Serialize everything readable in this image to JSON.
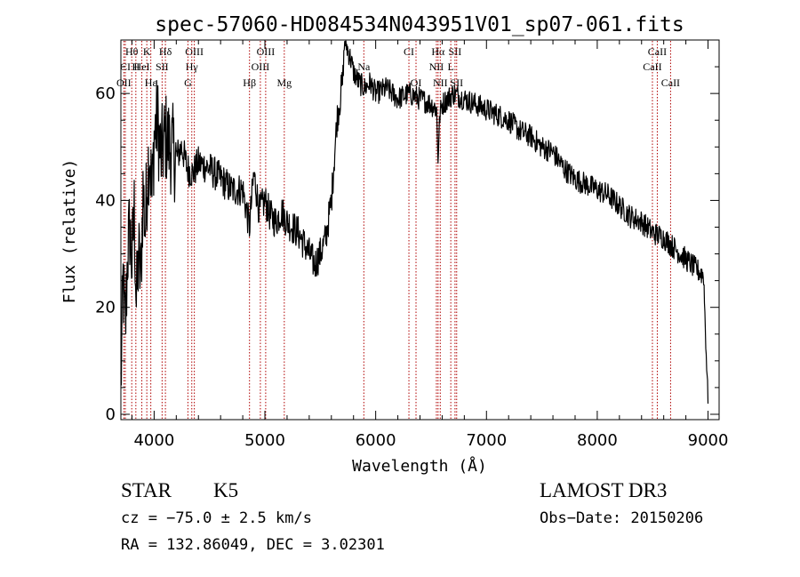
{
  "chart_data": {
    "type": "line",
    "title": "spec-57060-HD084534N043951V01_sp07-061.fits",
    "xlabel": "Wavelength (Å)",
    "ylabel": "Flux (relative)",
    "xlim": [
      3700,
      9100
    ],
    "ylim": [
      -1,
      70
    ],
    "xticks": [
      4000,
      5000,
      6000,
      7000,
      8000,
      9000
    ],
    "yticks": [
      0,
      20,
      40,
      60
    ],
    "series": [
      {
        "name": "flux",
        "x": [
          3700,
          3720,
          3740,
          3760,
          3780,
          3800,
          3820,
          3840,
          3860,
          3880,
          3900,
          3920,
          3940,
          3960,
          3980,
          4000,
          4030,
          4060,
          4100,
          4150,
          4200,
          4250,
          4300,
          4350,
          4400,
          4500,
          4600,
          4700,
          4800,
          4860,
          4900,
          4950,
          5000,
          5050,
          5100,
          5150,
          5200,
          5300,
          5400,
          5450,
          5500,
          5550,
          5600,
          5650,
          5700,
          5720,
          5750,
          5780,
          5800,
          5850,
          5900,
          5950,
          6000,
          6100,
          6200,
          6300,
          6400,
          6500,
          6550,
          6563,
          6580,
          6600,
          6700,
          6800,
          6900,
          7000,
          7100,
          7200,
          7300,
          7400,
          7500,
          7600,
          7700,
          7800,
          7900,
          8000,
          8100,
          8200,
          8300,
          8400,
          8500,
          8600,
          8700,
          8800,
          8900,
          8960,
          9000
        ],
        "y": [
          5,
          25,
          15,
          30,
          35,
          28,
          38,
          20,
          30,
          25,
          42,
          35,
          45,
          50,
          40,
          52,
          55,
          48,
          52,
          50,
          48,
          50,
          46,
          45,
          47,
          46,
          44,
          42,
          42,
          35,
          45,
          38,
          40,
          37,
          36,
          38,
          36,
          34,
          30,
          28,
          30,
          33,
          40,
          55,
          62,
          70,
          68,
          66,
          64,
          62,
          61,
          62,
          60,
          61,
          59,
          60,
          59,
          58,
          57,
          48,
          56,
          58,
          60,
          59,
          58,
          57,
          56,
          55,
          53,
          52,
          50,
          49,
          46,
          44,
          43,
          42,
          41,
          39,
          37,
          36,
          34,
          33,
          31,
          29,
          27,
          26,
          2
        ]
      }
    ],
    "line_markers": [
      {
        "label": "Hθ",
        "x": 3798,
        "row": 1
      },
      {
        "label": "K",
        "x": 3934,
        "row": 1
      },
      {
        "label": "Hδ",
        "x": 4102,
        "row": 1
      },
      {
        "label": "OIII",
        "x": 4363,
        "row": 1
      },
      {
        "label": "OIII",
        "x": 5007,
        "row": 1
      },
      {
        "label": "CI",
        "x": 6300,
        "row": 1
      },
      {
        "label": "Hα",
        "x": 6563,
        "row": 1
      },
      {
        "label": "SII",
        "x": 6716,
        "row": 1
      },
      {
        "label": "CaII",
        "x": 8542,
        "row": 1
      },
      {
        "label": "CI",
        "x": 3740,
        "row": 2
      },
      {
        "label": "H",
        "x": 3835,
        "row": 2
      },
      {
        "label": "HeI",
        "x": 3889,
        "row": 2
      },
      {
        "label": "SII",
        "x": 4072,
        "row": 2
      },
      {
        "label": "Hγ",
        "x": 4340,
        "row": 2
      },
      {
        "label": "OIII",
        "x": 4959,
        "row": 2
      },
      {
        "label": "Na",
        "x": 5893,
        "row": 2
      },
      {
        "label": "NII",
        "x": 6548,
        "row": 2
      },
      {
        "label": "L",
        "x": 6678,
        "row": 2
      },
      {
        "label": "CaII",
        "x": 8498,
        "row": 2
      },
      {
        "label": "OII",
        "x": 3727,
        "row": 3
      },
      {
        "label": "Hε",
        "x": 3970,
        "row": 3
      },
      {
        "label": "G",
        "x": 4305,
        "row": 3
      },
      {
        "label": "Hβ",
        "x": 4861,
        "row": 3
      },
      {
        "label": "Mg",
        "x": 5175,
        "row": 3
      },
      {
        "label": "OI",
        "x": 6364,
        "row": 3
      },
      {
        "label": "NII",
        "x": 6583,
        "row": 3
      },
      {
        "label": "SII",
        "x": 6731,
        "row": 3
      },
      {
        "label": "CaII",
        "x": 8662,
        "row": 3
      }
    ]
  },
  "info": {
    "object_type": "STAR",
    "subclass": "K5",
    "survey": "LAMOST DR3",
    "redshift": "cz = −75.0 ± 2.5 km/s",
    "obs_date": "Obs−Date: 20150206",
    "coords": "RA = 132.86049, DEC =   3.02301"
  }
}
